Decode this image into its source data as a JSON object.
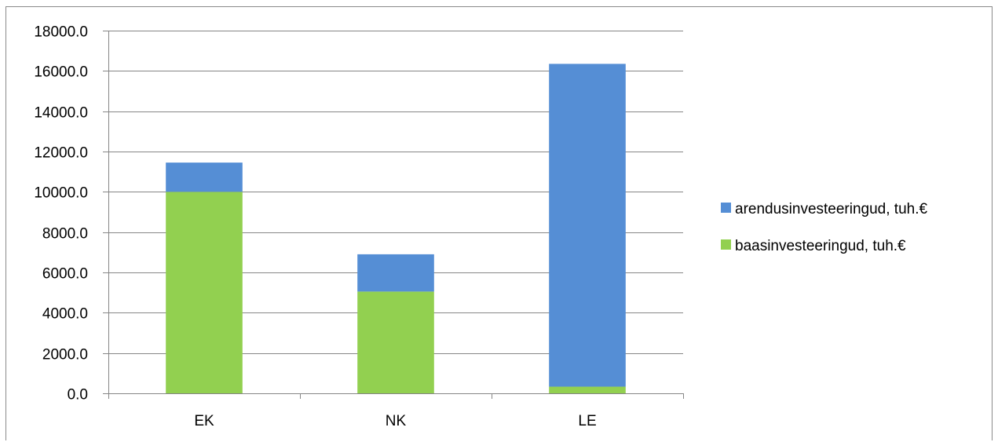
{
  "chart_data": {
    "type": "bar",
    "stacked": true,
    "categories": [
      "EK",
      "NK",
      "LE"
    ],
    "series": [
      {
        "name": "baasinvesteeringud, tuh.€",
        "values": [
          10000,
          5050,
          330
        ],
        "color": "#92d050"
      },
      {
        "name": "arendusinvesteeringud, tuh.€",
        "values": [
          1450,
          1850,
          16020
        ],
        "color": "#558ed5"
      }
    ],
    "ylim": [
      0,
      18000
    ],
    "yticks": [
      0,
      2000,
      4000,
      6000,
      8000,
      10000,
      12000,
      14000,
      16000,
      18000
    ],
    "ytick_labels": [
      "0.0",
      "2000.0",
      "4000.0",
      "6000.0",
      "8000.0",
      "10000.0",
      "12000.0",
      "14000.0",
      "16000.0",
      "18000.0"
    ],
    "legend_order": [
      1,
      0
    ],
    "legend_position": "right",
    "grid": true
  }
}
